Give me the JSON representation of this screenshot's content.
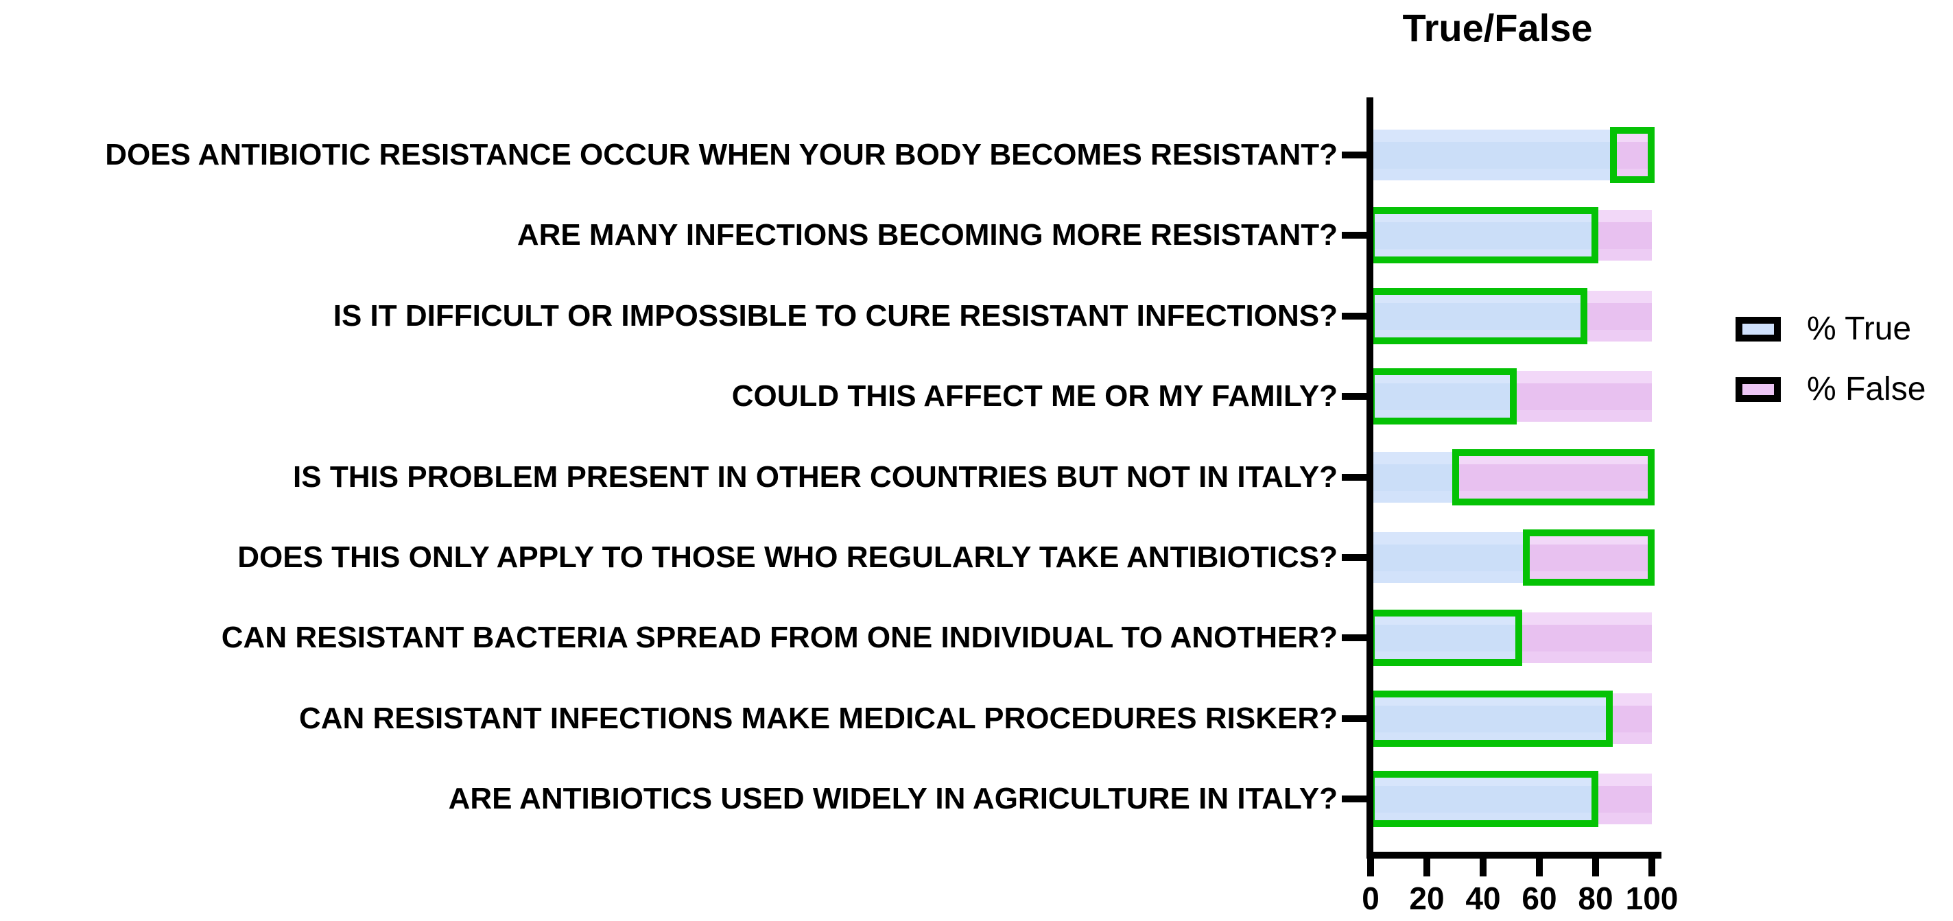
{
  "chart_data": {
    "type": "bar",
    "subtype": "horizontal_stacked",
    "title": "True/False",
    "categories": [
      "DOES ANTIBIOTIC RESISTANCE OCCUR WHEN YOUR BODY BECOMES RESISTANT?",
      "ARE MANY INFECTIONS BECOMING MORE RESISTANT?",
      "IS IT DIFFICULT OR IMPOSSIBLE TO CURE RESISTANT INFECTIONS?",
      "COULD THIS AFFECT ME OR MY FAMILY?",
      "IS THIS PROBLEM PRESENT IN OTHER COUNTRIES BUT NOT IN ITALY?",
      "DOES THIS ONLY APPLY TO THOSE WHO REGULARLY TAKE ANTIBIOTICS?",
      "CAN RESISTANT BACTERIA SPREAD FROM ONE INDIVIDUAL TO ANOTHER?",
      "CAN RESISTANT INFECTIONS MAKE MEDICAL PROCEDURES RISKER?",
      "ARE ANTIBIOTICS USED WIDELY IN AGRICULTURE IN ITALY?"
    ],
    "series": [
      {
        "name": "% True",
        "color": "#cbdef8",
        "values": [
          86,
          80,
          76,
          51,
          30,
          55,
          53,
          85,
          80
        ]
      },
      {
        "name": "% False",
        "color": "#e8c1f0",
        "values": [
          14,
          20,
          24,
          49,
          70,
          45,
          47,
          15,
          20
        ]
      }
    ],
    "outlined_segment_per_row": [
      "% False",
      "% True",
      "% True",
      "% True",
      "% False",
      "% False",
      "% True",
      "% True",
      "% True"
    ],
    "outline_color": "#05c205",
    "xlim": [
      0,
      100
    ],
    "xticks": [
      0,
      20,
      40,
      60,
      80,
      100
    ],
    "xtick_labels": [
      "0",
      "20",
      "40",
      "60",
      "80",
      "100"
    ],
    "legend_position": "right",
    "grid": false
  },
  "legend": {
    "items": [
      {
        "label": "% True"
      },
      {
        "label": "% False"
      }
    ]
  }
}
